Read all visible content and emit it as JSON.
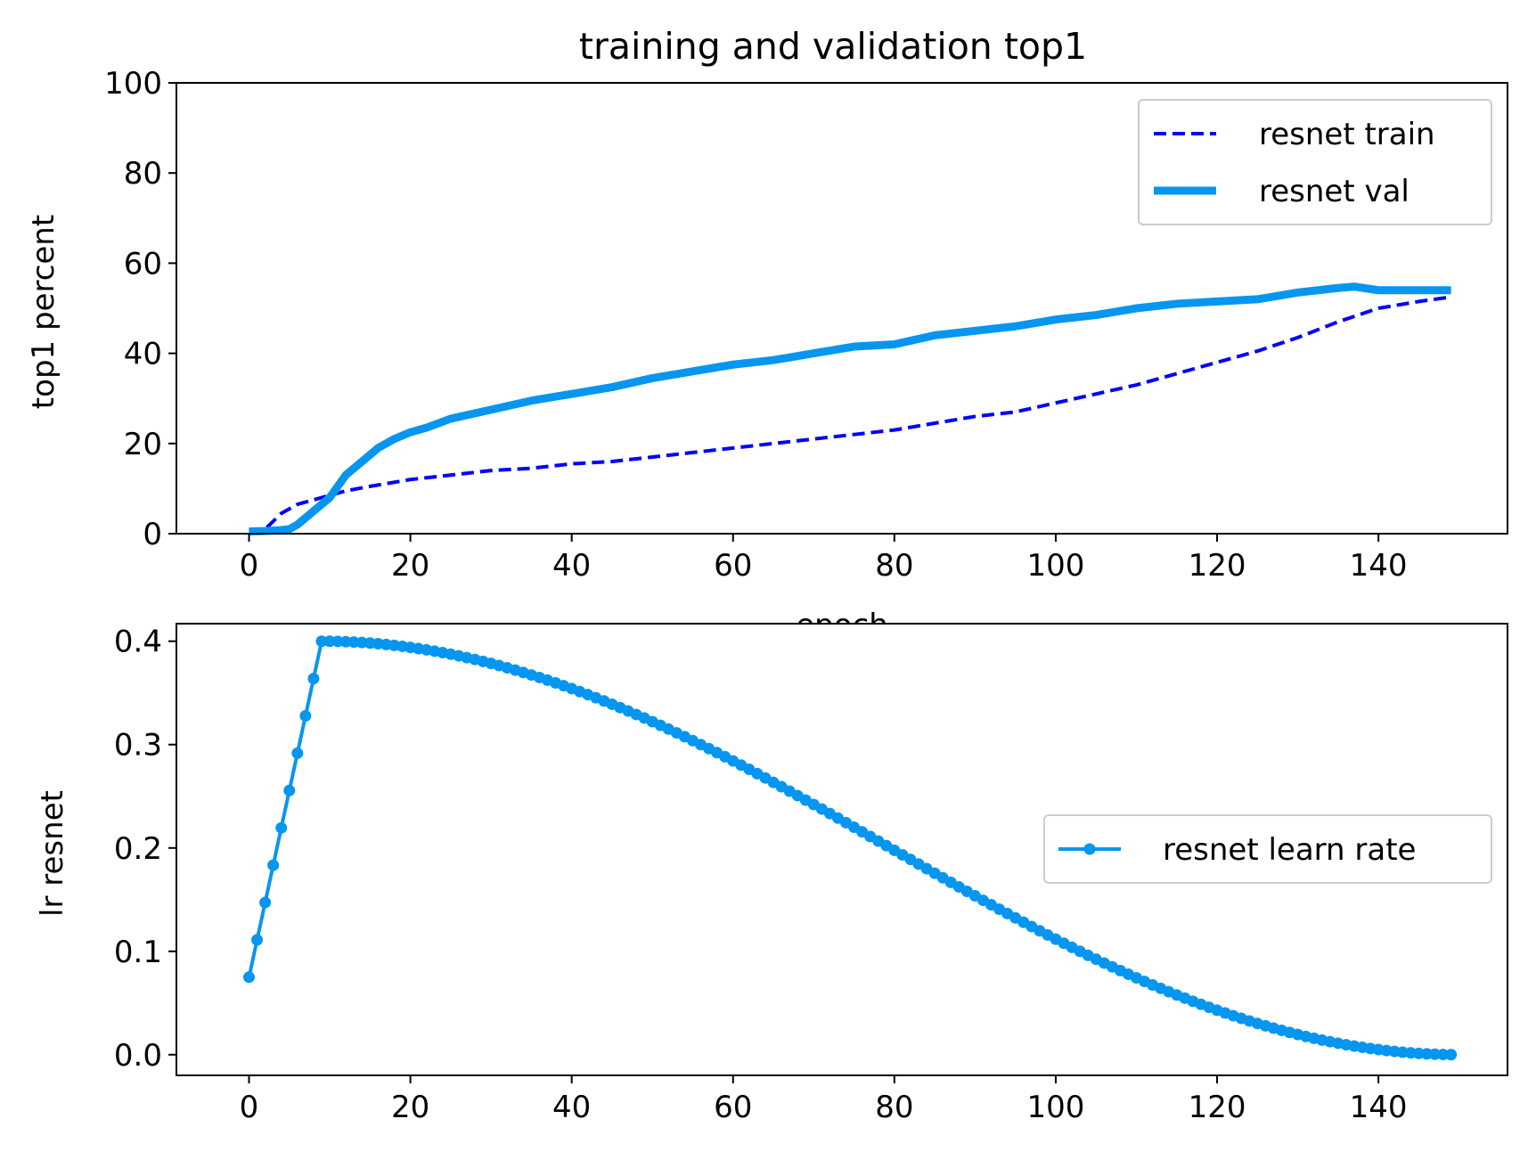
{
  "chart_data": [
    {
      "type": "line",
      "title": "training and validation top1",
      "xlabel": "epoch",
      "ylabel": "top1 percent",
      "xlim": [
        -9,
        156
      ],
      "ylim": [
        0,
        100
      ],
      "xticks": [
        0,
        20,
        40,
        60,
        80,
        100,
        120,
        140
      ],
      "yticks": [
        0,
        20,
        40,
        60,
        80,
        100
      ],
      "grid": false,
      "legend": "upper right",
      "series": [
        {
          "name": "resnet train",
          "color": "#0000ff",
          "style": "dashed",
          "x": [
            0,
            2,
            4,
            6,
            8,
            10,
            12,
            15,
            20,
            25,
            30,
            35,
            40,
            45,
            50,
            55,
            60,
            65,
            70,
            75,
            80,
            85,
            90,
            95,
            100,
            105,
            110,
            115,
            120,
            125,
            130,
            135,
            140,
            145,
            149
          ],
          "y": [
            0.5,
            1,
            4.5,
            6.5,
            7.5,
            8.5,
            9.5,
            10.5,
            12,
            13,
            14,
            14.5,
            15.5,
            16,
            17,
            18,
            19,
            20,
            21,
            22,
            23,
            24.5,
            26,
            27,
            29,
            31,
            33,
            35.5,
            38,
            40.5,
            43.5,
            47,
            50,
            51.5,
            52.5
          ]
        },
        {
          "name": "resnet val",
          "color": "#0796ef",
          "style": "solid",
          "x": [
            0,
            2,
            4,
            5,
            6,
            8,
            10,
            12,
            14,
            16,
            18,
            20,
            22,
            25,
            30,
            35,
            40,
            45,
            50,
            55,
            60,
            65,
            70,
            75,
            80,
            85,
            90,
            95,
            100,
            105,
            110,
            115,
            120,
            125,
            130,
            135,
            137,
            140,
            145,
            149
          ],
          "y": [
            0.5,
            0.6,
            0.8,
            1,
            2,
            5,
            8,
            13,
            16,
            19,
            21,
            22.5,
            23.5,
            25.5,
            27.5,
            29.5,
            31,
            32.5,
            34.5,
            36,
            37.5,
            38.5,
            40,
            41.5,
            42,
            44,
            45,
            46,
            47.5,
            48.5,
            50,
            51,
            51.5,
            52,
            53.5,
            54.5,
            54.8,
            54,
            54,
            54
          ]
        }
      ]
    },
    {
      "type": "line",
      "title": "",
      "xlabel": "",
      "ylabel": "lr resnet",
      "xlim": [
        -9,
        156
      ],
      "ylim": [
        -0.02,
        0.417
      ],
      "xticks": [
        0,
        20,
        40,
        60,
        80,
        100,
        120,
        140
      ],
      "yticks": [
        0.0,
        0.1,
        0.2,
        0.3,
        0.4
      ],
      "ytick_labels": [
        "0.0",
        "0.1",
        "0.2",
        "0.3",
        "0.4"
      ],
      "grid": false,
      "legend": "center right",
      "series": [
        {
          "name": "resnet learn rate",
          "color": "#0796ef",
          "style": "solid",
          "marker": "circle",
          "formula": "linear warmup 0.075 to 0.4 over epochs 0-9, then cosine decay to 0 at epoch 150",
          "warmup_start": 0.075,
          "peak": 0.4,
          "warmup_epochs": 9,
          "total_epochs": 150
        }
      ]
    }
  ]
}
